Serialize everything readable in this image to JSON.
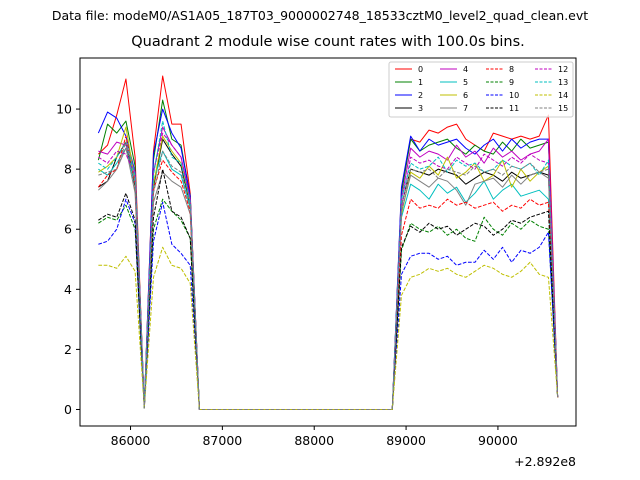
{
  "figure": {
    "suptitle": "Data file: modeM0/AS1A05_187T03_9000002748_18533cztM0_level2_quad_clean.evt"
  },
  "chart_data": {
    "type": "line",
    "title": "Quadrant 2 module wise count rates with 100.0s bins.",
    "xlabel": "",
    "ylabel": "",
    "x_offset_label": "+2.892e8",
    "xlim": [
      85450,
      90850
    ],
    "ylim": [
      -0.55,
      11.7
    ],
    "xticks": [
      86000,
      87000,
      88000,
      89000,
      90000
    ],
    "yticks": [
      0,
      2,
      4,
      6,
      8,
      10
    ],
    "grid": false,
    "legend_position": "top-right",
    "legend_columns": 4,
    "x": [
      85650,
      85750,
      85850,
      85950,
      86050,
      86150,
      86250,
      86350,
      86450,
      86550,
      86650,
      86750,
      86850,
      86950,
      87050,
      87150,
      87250,
      87350,
      87450,
      87550,
      87650,
      87750,
      87850,
      87950,
      88050,
      88150,
      88250,
      88350,
      88450,
      88550,
      88650,
      88750,
      88850,
      88950,
      89050,
      89150,
      89250,
      89350,
      89450,
      89550,
      89650,
      89750,
      89850,
      89950,
      90050,
      90150,
      90250,
      90350,
      90450,
      90550,
      90650
    ],
    "series": [
      {
        "name": "0",
        "color": "#ff0000",
        "style": "solid",
        "values": [
          8.5,
          8.8,
          9.8,
          11.0,
          8.4,
          0.05,
          8.6,
          11.1,
          9.5,
          9.5,
          7.2,
          0,
          0,
          0,
          0,
          0,
          0,
          0,
          0,
          0,
          0,
          0,
          0,
          0,
          0,
          0,
          0,
          0,
          0,
          0,
          0,
          0,
          0,
          7.3,
          9.0,
          8.9,
          9.3,
          9.2,
          9.4,
          9.5,
          9.0,
          8.8,
          8.6,
          9.2,
          9.1,
          9.0,
          9.1,
          9.0,
          9.1,
          9.8,
          0.4
        ]
      },
      {
        "name": "1",
        "color": "#008000",
        "style": "solid",
        "values": [
          8.3,
          9.5,
          9.2,
          9.6,
          8.1,
          0.1,
          8.3,
          10.3,
          9.0,
          8.8,
          7.1,
          0,
          0,
          0,
          0,
          0,
          0,
          0,
          0,
          0,
          0,
          0,
          0,
          0,
          0,
          0,
          0,
          0,
          0,
          0,
          0,
          0,
          0,
          7.2,
          9.0,
          8.6,
          8.8,
          8.9,
          9.0,
          8.7,
          8.5,
          8.8,
          8.6,
          8.5,
          8.9,
          8.6,
          9.0,
          8.7,
          8.8,
          8.9,
          0.4
        ]
      },
      {
        "name": "2",
        "color": "#0000ff",
        "style": "solid",
        "values": [
          9.2,
          9.9,
          9.7,
          9.1,
          7.9,
          0.1,
          8.5,
          10.0,
          9.2,
          8.7,
          7.1,
          0,
          0,
          0,
          0,
          0,
          0,
          0,
          0,
          0,
          0,
          0,
          0,
          0,
          0,
          0,
          0,
          0,
          0,
          0,
          0,
          0,
          0,
          7.4,
          9.1,
          8.6,
          9.0,
          8.8,
          8.9,
          9.0,
          8.7,
          8.5,
          8.8,
          9.0,
          8.6,
          9.0,
          8.7,
          8.9,
          9.0,
          9.0,
          0.4
        ]
      },
      {
        "name": "3",
        "color": "#000000",
        "style": "solid",
        "values": [
          7.4,
          7.6,
          8.4,
          8.9,
          7.4,
          0.05,
          7.4,
          9.0,
          8.5,
          8.1,
          6.8,
          0,
          0,
          0,
          0,
          0,
          0,
          0,
          0,
          0,
          0,
          0,
          0,
          0,
          0,
          0,
          0,
          0,
          0,
          0,
          0,
          0,
          0,
          6.8,
          8.0,
          7.9,
          7.8,
          8.0,
          7.9,
          7.8,
          7.5,
          7.7,
          7.9,
          7.8,
          7.6,
          7.9,
          7.7,
          7.8,
          7.9,
          7.8,
          0.4
        ]
      },
      {
        "name": "4",
        "color": "#bf00bf",
        "style": "solid",
        "values": [
          8.6,
          8.5,
          8.9,
          8.8,
          7.9,
          0.1,
          7.9,
          9.4,
          8.8,
          8.4,
          7.0,
          0,
          0,
          0,
          0,
          0,
          0,
          0,
          0,
          0,
          0,
          0,
          0,
          0,
          0,
          0,
          0,
          0,
          0,
          0,
          0,
          0,
          0,
          7.0,
          8.7,
          8.4,
          8.6,
          8.5,
          8.3,
          8.8,
          8.4,
          8.6,
          8.2,
          8.7,
          8.4,
          8.6,
          8.3,
          8.5,
          8.6,
          9.0,
          0.4
        ]
      },
      {
        "name": "5",
        "color": "#00bfbf",
        "style": "solid",
        "values": [
          8.0,
          7.8,
          8.2,
          8.7,
          7.5,
          0.1,
          7.6,
          8.6,
          8.0,
          7.8,
          6.7,
          0,
          0,
          0,
          0,
          0,
          0,
          0,
          0,
          0,
          0,
          0,
          0,
          0,
          0,
          0,
          0,
          0,
          0,
          0,
          0,
          0,
          0,
          6.4,
          7.5,
          7.3,
          7.0,
          7.5,
          7.2,
          7.4,
          6.9,
          7.2,
          7.6,
          7.0,
          7.3,
          7.5,
          7.1,
          7.2,
          7.3,
          7.0,
          0.4
        ]
      },
      {
        "name": "6",
        "color": "#bfbf00",
        "style": "solid",
        "values": [
          7.9,
          8.1,
          8.4,
          9.4,
          7.6,
          0.05,
          7.5,
          9.1,
          8.6,
          8.2,
          6.9,
          0,
          0,
          0,
          0,
          0,
          0,
          0,
          0,
          0,
          0,
          0,
          0,
          0,
          0,
          0,
          0,
          0,
          0,
          0,
          0,
          0,
          0,
          6.5,
          7.9,
          7.7,
          8.1,
          7.8,
          8.4,
          7.7,
          7.9,
          8.2,
          7.6,
          7.8,
          8.3,
          7.4,
          8.0,
          7.6,
          7.9,
          8.1,
          0.4
        ]
      },
      {
        "name": "7",
        "color": "#808080",
        "style": "solid",
        "values": [
          7.3,
          7.6,
          8.0,
          8.7,
          7.2,
          0.05,
          6.9,
          7.9,
          7.6,
          7.4,
          6.5,
          0,
          0,
          0,
          0,
          0,
          0,
          0,
          0,
          0,
          0,
          0,
          0,
          0,
          0,
          0,
          0,
          0,
          0,
          0,
          0,
          0,
          0,
          6.6,
          7.8,
          7.6,
          7.4,
          7.7,
          7.6,
          7.3,
          6.8,
          7.5,
          7.6,
          7.7,
          7.4,
          7.8,
          7.5,
          7.8,
          7.9,
          7.7,
          0.4
        ]
      },
      {
        "name": "8",
        "color": "#ff0000",
        "style": "dashed",
        "values": [
          7.4,
          7.8,
          8.0,
          9.1,
          7.5,
          0.05,
          7.3,
          8.3,
          7.9,
          7.6,
          6.6,
          0,
          0,
          0,
          0,
          0,
          0,
          0,
          0,
          0,
          0,
          0,
          0,
          0,
          0,
          0,
          0,
          0,
          0,
          0,
          0,
          0,
          0,
          5.8,
          7.0,
          6.7,
          6.8,
          6.7,
          7.0,
          6.8,
          6.9,
          6.7,
          6.8,
          6.9,
          6.6,
          6.8,
          6.7,
          7.0,
          6.8,
          6.9,
          0.4
        ]
      },
      {
        "name": "9",
        "color": "#008000",
        "style": "dashed",
        "values": [
          6.2,
          6.4,
          6.3,
          6.8,
          6.0,
          0.05,
          6.0,
          7.0,
          6.6,
          6.3,
          5.7,
          0,
          0,
          0,
          0,
          0,
          0,
          0,
          0,
          0,
          0,
          0,
          0,
          0,
          0,
          0,
          0,
          0,
          0,
          0,
          0,
          0,
          0,
          5.3,
          6.2,
          6.0,
          5.9,
          6.1,
          5.8,
          6.0,
          5.7,
          5.6,
          6.4,
          6.0,
          5.8,
          6.2,
          6.0,
          6.3,
          6.1,
          6.0,
          0.4
        ]
      },
      {
        "name": "10",
        "color": "#0000ff",
        "style": "dashed",
        "values": [
          5.5,
          5.6,
          6.0,
          7.0,
          6.2,
          0.05,
          5.6,
          6.9,
          5.5,
          5.2,
          4.8,
          0,
          0,
          0,
          0,
          0,
          0,
          0,
          0,
          0,
          0,
          0,
          0,
          0,
          0,
          0,
          0,
          0,
          0,
          0,
          0,
          0,
          0,
          4.5,
          5.1,
          5.2,
          5.2,
          5.0,
          5.1,
          4.8,
          4.9,
          4.9,
          5.3,
          5.0,
          5.4,
          4.9,
          5.3,
          5.2,
          5.4,
          5.9,
          0.4
        ]
      },
      {
        "name": "11",
        "color": "#000000",
        "style": "dashed",
        "values": [
          6.3,
          6.5,
          6.4,
          7.2,
          6.3,
          0.05,
          6.4,
          8.0,
          6.6,
          6.4,
          5.7,
          0,
          0,
          0,
          0,
          0,
          0,
          0,
          0,
          0,
          0,
          0,
          0,
          0,
          0,
          0,
          0,
          0,
          0,
          0,
          0,
          0,
          0,
          5.4,
          6.1,
          5.9,
          6.2,
          6.0,
          6.1,
          5.8,
          6.0,
          6.2,
          6.1,
          5.8,
          6.0,
          6.3,
          6.2,
          6.4,
          6.5,
          6.6,
          0.4
        ]
      },
      {
        "name": "12",
        "color": "#bf00bf",
        "style": "dashed",
        "values": [
          8.4,
          8.2,
          8.6,
          8.5,
          7.8,
          0.1,
          7.9,
          9.2,
          8.8,
          8.4,
          7.0,
          0,
          0,
          0,
          0,
          0,
          0,
          0,
          0,
          0,
          0,
          0,
          0,
          0,
          0,
          0,
          0,
          0,
          0,
          0,
          0,
          0,
          0,
          6.7,
          8.4,
          8.2,
          8.3,
          8.1,
          8.0,
          8.4,
          8.2,
          8.0,
          8.5,
          8.3,
          8.1,
          8.4,
          8.2,
          8.5,
          8.3,
          8.2,
          0.4
        ]
      },
      {
        "name": "13",
        "color": "#00bfbf",
        "style": "dashed",
        "values": [
          8.2,
          8.0,
          8.4,
          8.9,
          7.8,
          0.05,
          7.8,
          9.6,
          8.4,
          8.2,
          6.9,
          0,
          0,
          0,
          0,
          0,
          0,
          0,
          0,
          0,
          0,
          0,
          0,
          0,
          0,
          0,
          0,
          0,
          0,
          0,
          0,
          0,
          0,
          7.0,
          8.2,
          8.0,
          8.1,
          8.4,
          7.9,
          8.3,
          8.1,
          8.2,
          7.9,
          8.0,
          8.3,
          8.1,
          8.0,
          8.2,
          7.8,
          8.3,
          0.4
        ]
      },
      {
        "name": "14",
        "color": "#bfbf00",
        "style": "dashed",
        "values": [
          4.8,
          4.8,
          4.7,
          5.1,
          4.6,
          0.05,
          4.4,
          5.4,
          4.8,
          4.7,
          4.2,
          0,
          0,
          0,
          0,
          0,
          0,
          0,
          0,
          0,
          0,
          0,
          0,
          0,
          0,
          0,
          0,
          0,
          0,
          0,
          0,
          0,
          0,
          3.8,
          4.4,
          4.5,
          4.7,
          4.6,
          4.7,
          4.5,
          4.4,
          4.6,
          4.8,
          4.7,
          4.5,
          4.4,
          4.6,
          4.9,
          4.5,
          4.4,
          0.4
        ]
      },
      {
        "name": "15",
        "color": "#808080",
        "style": "dashed",
        "values": [
          7.8,
          7.9,
          8.0,
          8.9,
          7.6,
          0.05,
          7.2,
          8.6,
          8.1,
          7.9,
          6.8,
          0,
          0,
          0,
          0,
          0,
          0,
          0,
          0,
          0,
          0,
          0,
          0,
          0,
          0,
          0,
          0,
          0,
          0,
          0,
          0,
          0,
          0,
          6.8,
          8.0,
          7.9,
          8.0,
          7.7,
          8.0,
          7.9,
          7.8,
          8.1,
          7.9,
          8.0,
          7.8,
          8.1,
          8.0,
          8.2,
          7.9,
          8.0,
          0.4
        ]
      }
    ]
  }
}
